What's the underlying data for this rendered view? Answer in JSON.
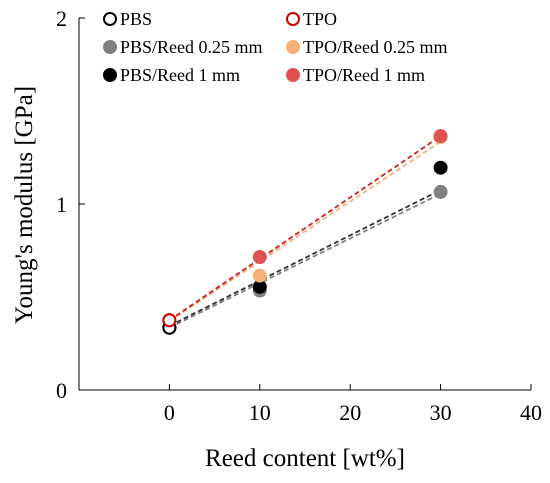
{
  "chart_data": {
    "type": "scatter",
    "title": "",
    "xlabel": "Reed content [wt%]",
    "ylabel": "Young's modulus [GPa]",
    "xlim": [
      -10,
      40
    ],
    "ylim": [
      0,
      2
    ],
    "xticks": [
      "0",
      "10",
      "20",
      "30",
      "40"
    ],
    "yticks": [
      "0",
      "1",
      "2"
    ],
    "grid": false,
    "legend_placement": "top",
    "series": [
      {
        "name": "PBS",
        "x": [
          0
        ],
        "y": [
          0.335
        ],
        "color": "#000000",
        "marker": "open-circle"
      },
      {
        "name": "PBS/Reed 0.25 mm",
        "x": [
          0,
          10,
          30
        ],
        "y": [
          0.335,
          0.535,
          1.065
        ],
        "color": "#808080",
        "marker": "filled-circle"
      },
      {
        "name": "PBS/Reed 1 mm",
        "x": [
          0,
          10,
          30
        ],
        "y": [
          0.335,
          0.555,
          1.195
        ],
        "color": "#000000",
        "marker": "filled-circle"
      },
      {
        "name": "TPO",
        "x": [
          0
        ],
        "y": [
          0.375
        ],
        "color": "#cc0000",
        "marker": "open-circle"
      },
      {
        "name": "TPO/Reed 0.25 mm",
        "x": [
          0,
          10,
          30
        ],
        "y": [
          0.375,
          0.615,
          1.36
        ],
        "color": "#f7b07a",
        "marker": "filled-circle"
      },
      {
        "name": "TPO/Reed 1 mm",
        "x": [
          0,
          10,
          30
        ],
        "y": [
          0.375,
          0.715,
          1.365
        ],
        "color": "#e05252",
        "marker": "filled-circle"
      }
    ],
    "trendlines": [
      {
        "series": "PBS/Reed 0.25 mm",
        "x": [
          0,
          30
        ],
        "y": [
          0.335,
          1.055
        ],
        "color": "#808080"
      },
      {
        "series": "PBS/Reed 1 mm",
        "x": [
          0,
          30
        ],
        "y": [
          0.345,
          1.075
        ],
        "color": "#333333"
      },
      {
        "series": "TPO/Reed 0.25 mm",
        "x": [
          0,
          30
        ],
        "y": [
          0.37,
          1.335
        ],
        "color": "#f7b07a"
      },
      {
        "series": "TPO/Reed 1 mm",
        "x": [
          0,
          30
        ],
        "y": [
          0.375,
          1.365
        ],
        "color": "#cc2222"
      }
    ]
  }
}
